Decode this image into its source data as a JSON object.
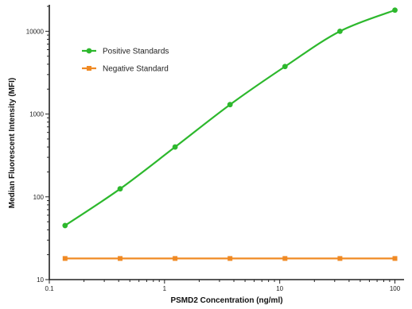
{
  "chart_data": {
    "type": "line",
    "title": "",
    "xlabel": "PSMD2 Concentration (ng/ml)",
    "ylabel": "Median Fluorescent Intensity (MFI)",
    "xscale": "log",
    "yscale": "log",
    "xlim": [
      0.1,
      120
    ],
    "ylim": [
      10,
      20000
    ],
    "x_ticks": [
      0.1,
      1,
      10,
      100
    ],
    "x_tick_labels": [
      "0.1",
      "1",
      "10",
      "100"
    ],
    "y_ticks": [
      10,
      100,
      1000,
      10000
    ],
    "y_tick_labels": [
      "10",
      "100",
      "1000",
      "10000"
    ],
    "grid": false,
    "legend_position": "top-left",
    "series": [
      {
        "name": "Positive Standards",
        "color": "#2db82d",
        "marker": "circle",
        "x": [
          0.137,
          0.412,
          1.235,
          3.704,
          11.11,
          33.33,
          100
        ],
        "y": [
          45,
          125,
          400,
          1300,
          3750,
          10000,
          18000
        ]
      },
      {
        "name": "Negative Standard",
        "color": "#f08a24",
        "marker": "square",
        "x": [
          0.137,
          0.412,
          1.235,
          3.704,
          11.11,
          33.33,
          100
        ],
        "y": [
          18,
          18,
          18,
          18,
          18,
          18,
          18
        ]
      }
    ]
  }
}
